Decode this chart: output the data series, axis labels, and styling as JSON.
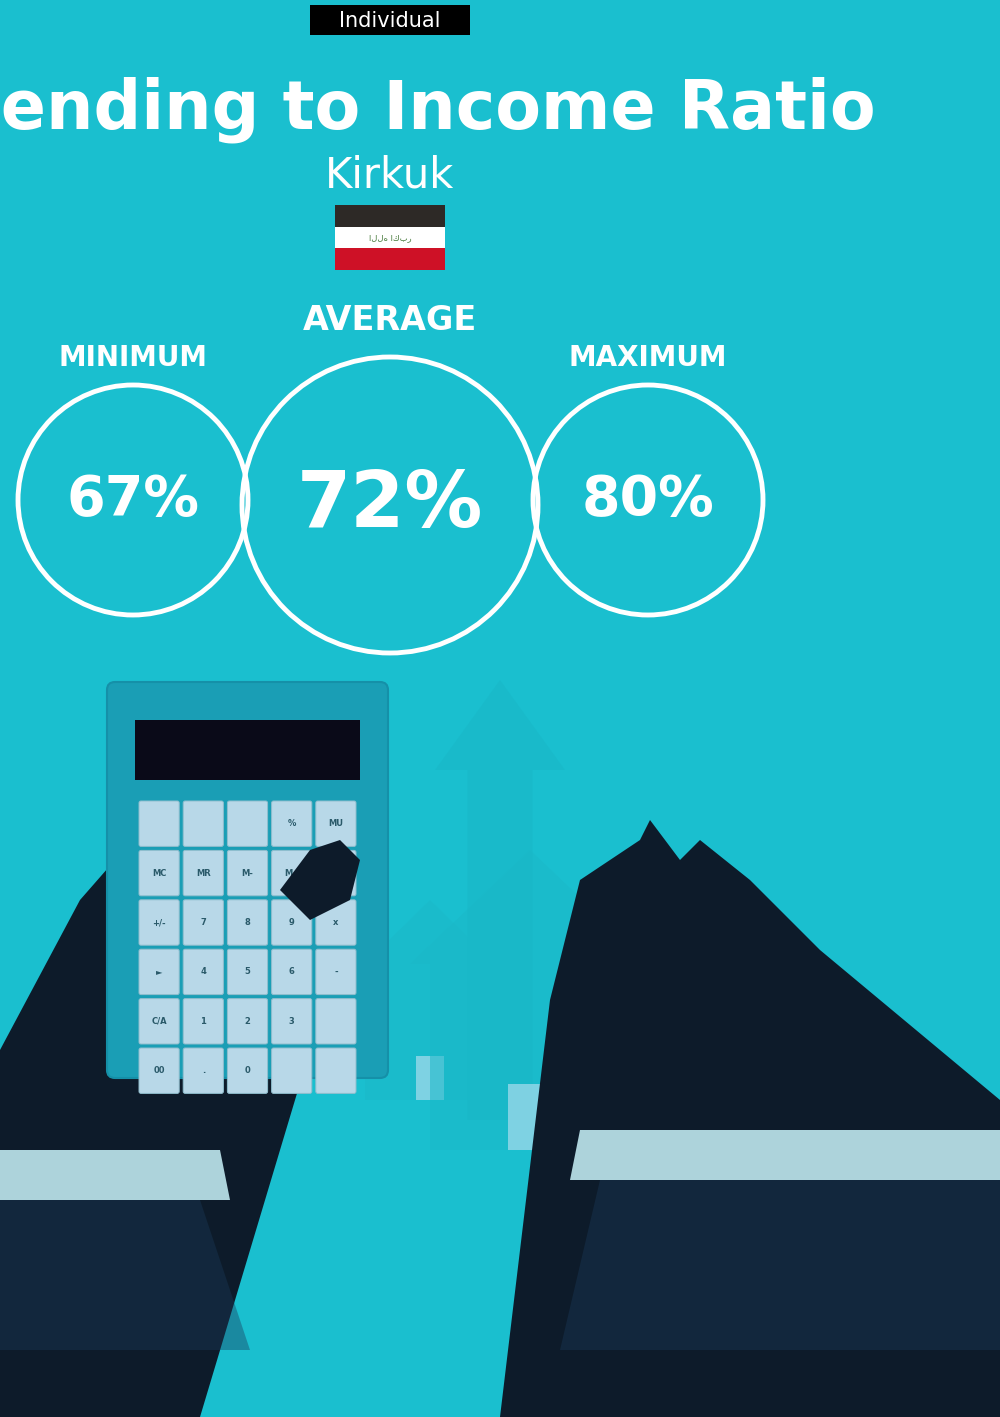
{
  "bg_color": "#1ABFCF",
  "title": "Spending to Income Ratio",
  "subtitle": "Kirkuk",
  "tag_text": "Individual",
  "tag_bg": "#000000",
  "tag_text_color": "#FFFFFF",
  "title_color": "#FFFFFF",
  "subtitle_color": "#FFFFFF",
  "min_label": "MINIMUM",
  "avg_label": "AVERAGE",
  "max_label": "MAXIMUM",
  "min_value": "67%",
  "avg_value": "72%",
  "max_value": "80%",
  "label_color": "#FFFFFF",
  "value_color": "#FFFFFF",
  "circle_edge_color": "#FFFFFF",
  "circle_linewidth": 3.5,
  "flag_red": "#CE1126",
  "flag_white": "#FFFFFF",
  "flag_black": "#2D2926",
  "flag_green_text": "#4a7c3f",
  "arrow_color": "#18B5C5",
  "house_color": "#1AB8C8",
  "money_bag_color": "#1AAFBF",
  "dollar_color": "#C8A84B",
  "hand_color": "#0D1B2A",
  "calc_body_color": "#1A9EB5",
  "calc_screen_color": "#0A0A18",
  "calc_btn_color": "#B8D8E8",
  "sleeve_color": "#0D1B2A",
  "sleeve_light": "#1A3A5A"
}
